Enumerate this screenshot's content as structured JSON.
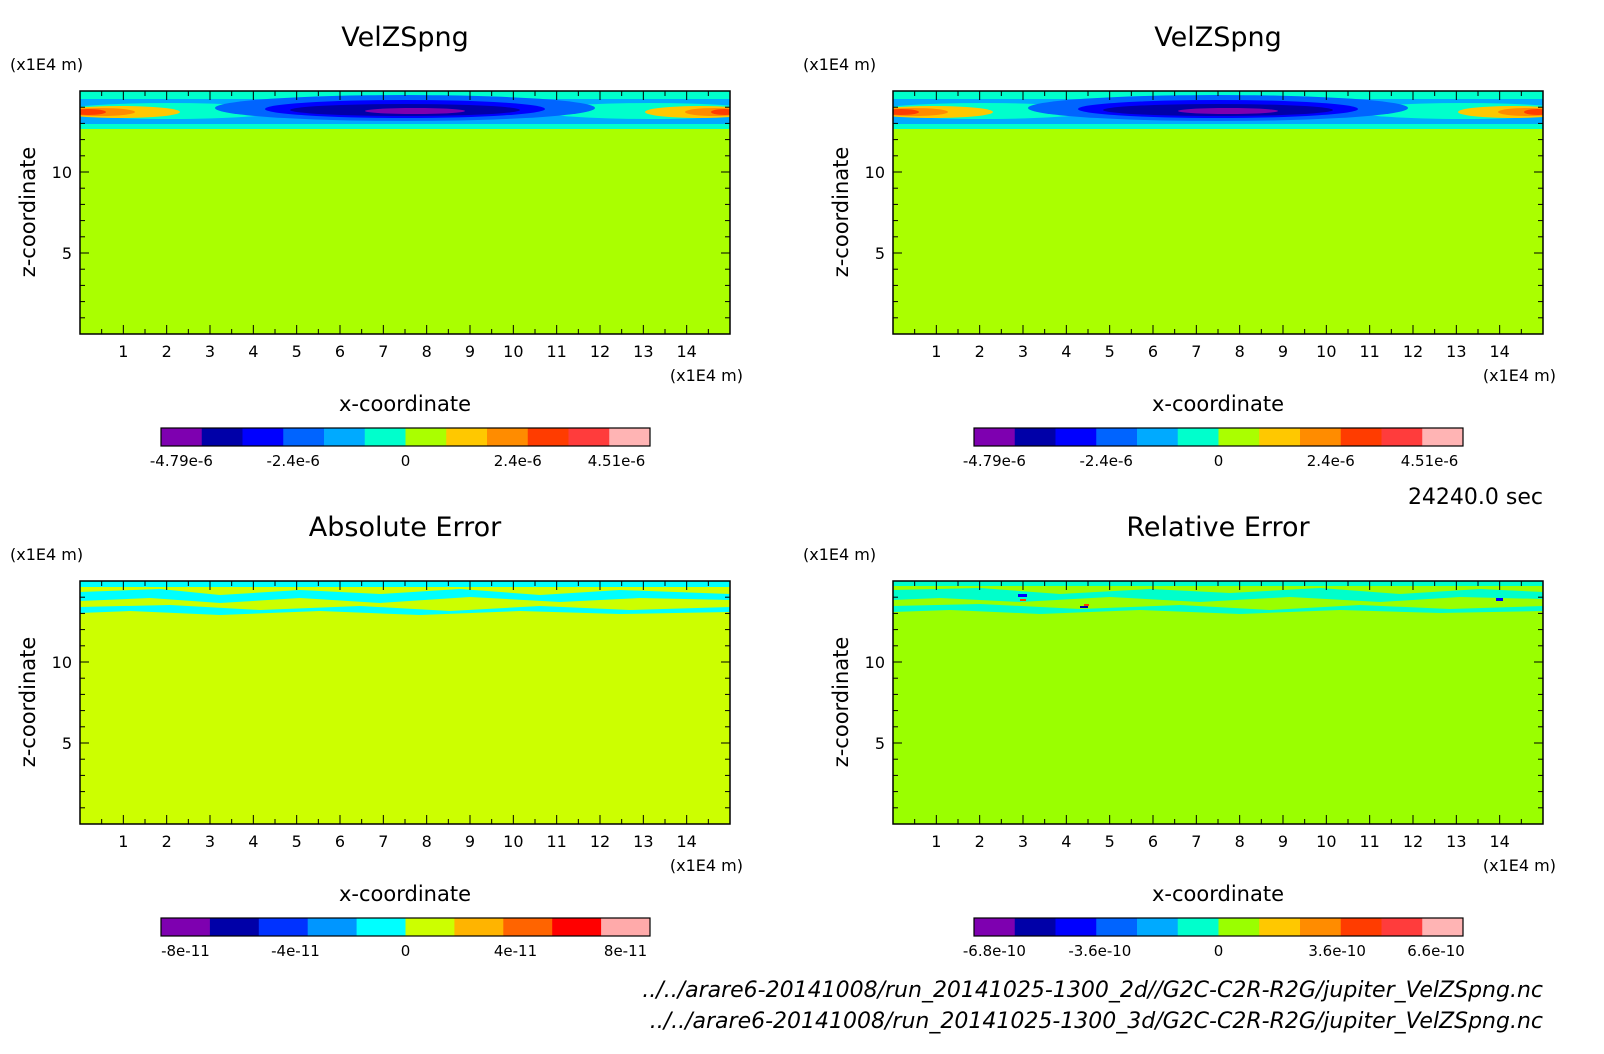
{
  "timestamp": "24240.0 sec",
  "file_paths": [
    "../../arare6-20141008/run_20141025-1300_2d//G2C-C2R-R2G/jupiter_VelZSpng.nc",
    "../../arare6-20141008/run_20141025-1300_3d/G2C-C2R-R2G/jupiter_VelZSpng.nc"
  ],
  "chart_data": [
    {
      "type": "heatmap",
      "title": "VelZSpng",
      "xlabel": "x-coordinate",
      "ylabel": "z-coordinate",
      "x_unit": "(x1E4 m)",
      "y_unit": "(x1E4 m)",
      "xlim": [
        0,
        15
      ],
      "ylim": [
        0,
        15
      ],
      "x_ticks": [
        "1",
        "2",
        "3",
        "4",
        "5",
        "6",
        "7",
        "8",
        "9",
        "10",
        "11",
        "12",
        "13",
        "14"
      ],
      "y_ticks": [
        "5",
        "10"
      ],
      "background_color": "#aaff00",
      "colorbar": {
        "colors": [
          "#7e00b0",
          "#0000a8",
          "#0000ff",
          "#0064ff",
          "#00aaff",
          "#00ffcc",
          "#aaff00",
          "#ffc800",
          "#ff8c00",
          "#ff3c00",
          "#ff3c3c",
          "#ffb4b4"
        ],
        "labels": [
          "-4.79e-6",
          "-2.4e-6",
          "0",
          "2.4e-6",
          "4.51e-6"
        ],
        "values": [
          -4.79e-06,
          -2.4e-06,
          0,
          2.4e-06,
          4.51e-06
        ]
      }
    },
    {
      "type": "heatmap",
      "title": "VelZSpng",
      "xlabel": "x-coordinate",
      "ylabel": "z-coordinate",
      "x_unit": "(x1E4 m)",
      "y_unit": "(x1E4 m)",
      "xlim": [
        0,
        15
      ],
      "ylim": [
        0,
        15
      ],
      "x_ticks": [
        "1",
        "2",
        "3",
        "4",
        "5",
        "6",
        "7",
        "8",
        "9",
        "10",
        "11",
        "12",
        "13",
        "14"
      ],
      "y_ticks": [
        "5",
        "10"
      ],
      "background_color": "#aaff00",
      "colorbar": {
        "colors": [
          "#7e00b0",
          "#0000a8",
          "#0000ff",
          "#0064ff",
          "#00aaff",
          "#00ffcc",
          "#aaff00",
          "#ffc800",
          "#ff8c00",
          "#ff3c00",
          "#ff3c3c",
          "#ffb4b4"
        ],
        "labels": [
          "-4.79e-6",
          "-2.4e-6",
          "0",
          "2.4e-6",
          "4.51e-6"
        ],
        "values": [
          -4.79e-06,
          -2.4e-06,
          0,
          2.4e-06,
          4.51e-06
        ]
      }
    },
    {
      "type": "heatmap",
      "title": "Absolute Error",
      "xlabel": "x-coordinate",
      "ylabel": "z-coordinate",
      "x_unit": "(x1E4 m)",
      "y_unit": "(x1E4 m)",
      "xlim": [
        0,
        15
      ],
      "ylim": [
        0,
        15
      ],
      "x_ticks": [
        "1",
        "2",
        "3",
        "4",
        "5",
        "6",
        "7",
        "8",
        "9",
        "10",
        "11",
        "12",
        "13",
        "14"
      ],
      "y_ticks": [
        "5",
        "10"
      ],
      "background_color": "#ccff00",
      "colorbar": {
        "colors": [
          "#7e00b0",
          "#0000a8",
          "#0032ff",
          "#0096ff",
          "#00ffff",
          "#ccff00",
          "#ffb400",
          "#ff6400",
          "#ff0000",
          "#ffaaaa"
        ],
        "labels": [
          "-8e-11",
          "-4e-11",
          "0",
          "4e-11",
          "8e-11"
        ],
        "values": [
          -8e-11,
          -4e-11,
          0,
          4e-11,
          8e-11
        ]
      }
    },
    {
      "type": "heatmap",
      "title": "Relative Error",
      "xlabel": "x-coordinate",
      "ylabel": "z-coordinate",
      "x_unit": "(x1E4 m)",
      "y_unit": "(x1E4 m)",
      "xlim": [
        0,
        15
      ],
      "ylim": [
        0,
        15
      ],
      "x_ticks": [
        "1",
        "2",
        "3",
        "4",
        "5",
        "6",
        "7",
        "8",
        "9",
        "10",
        "11",
        "12",
        "13",
        "14"
      ],
      "y_ticks": [
        "5",
        "10"
      ],
      "background_color": "#9aff00",
      "colorbar": {
        "colors": [
          "#7e00b0",
          "#0000a8",
          "#0000ff",
          "#0064ff",
          "#00aaff",
          "#00ffcc",
          "#9aff00",
          "#ffc800",
          "#ff8c00",
          "#ff3c00",
          "#ff3c3c",
          "#ffb4b4"
        ],
        "labels": [
          "-6.8e-10",
          "-3.6e-10",
          "0",
          "3.6e-10",
          "6.6e-10"
        ],
        "values": [
          -6.8e-10,
          -3.6e-10,
          0,
          3.6e-10,
          6.6e-10
        ]
      }
    }
  ]
}
